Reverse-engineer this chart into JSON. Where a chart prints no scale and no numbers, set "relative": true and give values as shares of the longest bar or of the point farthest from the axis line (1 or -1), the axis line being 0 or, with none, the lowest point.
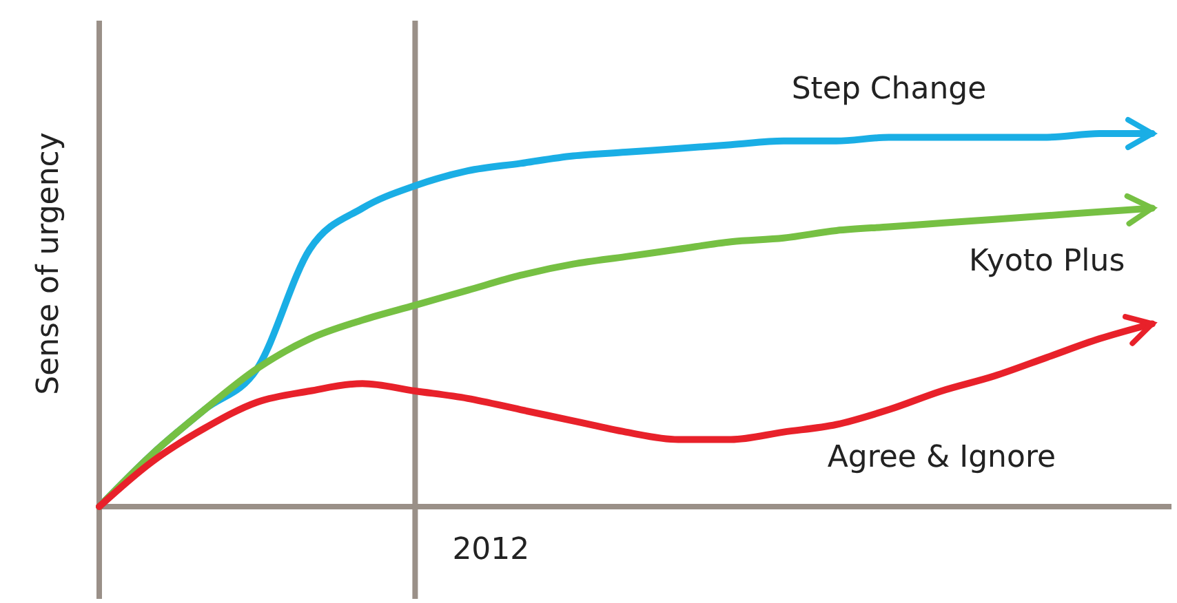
{
  "chart_data": {
    "type": "line",
    "relative": true,
    "ylabel": "Sense of urgency",
    "grid": false,
    "legend": false,
    "marker": "none",
    "line_style": "solid",
    "categories": [
      null,
      null,
      null,
      null,
      null,
      null,
      null,
      null,
      null,
      null,
      null,
      null,
      null,
      null,
      null,
      null,
      null,
      null,
      null,
      null,
      null
    ],
    "annotations": [
      "2012"
    ],
    "series": [
      {
        "name": "Step Change",
        "color": "#1aaee5",
        "values": [
          0,
          0.14,
          0.26,
          0.37,
          0.69,
          0.8,
          0.86,
          0.9,
          0.92,
          0.94,
          0.95,
          0.96,
          0.97,
          0.98,
          0.98,
          0.99,
          0.99,
          0.99,
          0.99,
          1,
          1
        ]
      },
      {
        "name": "Kyoto Plus",
        "color": "#76c043",
        "values": [
          0,
          0.14,
          0.26,
          0.37,
          0.45,
          0.5,
          0.54,
          0.58,
          0.62,
          0.65,
          0.67,
          0.69,
          0.71,
          0.72,
          0.74,
          0.75,
          0.76,
          0.77,
          0.78,
          0.79,
          0.8
        ]
      },
      {
        "name": "Agree & Ignore",
        "color": "#e8212a",
        "values": [
          0,
          0.12,
          0.21,
          0.28,
          0.31,
          0.33,
          0.31,
          0.29,
          0.26,
          0.23,
          0.2,
          0.18,
          0.18,
          0.2,
          0.22,
          0.26,
          0.31,
          0.35,
          0.4,
          0.45,
          0.49
        ]
      }
    ]
  }
}
